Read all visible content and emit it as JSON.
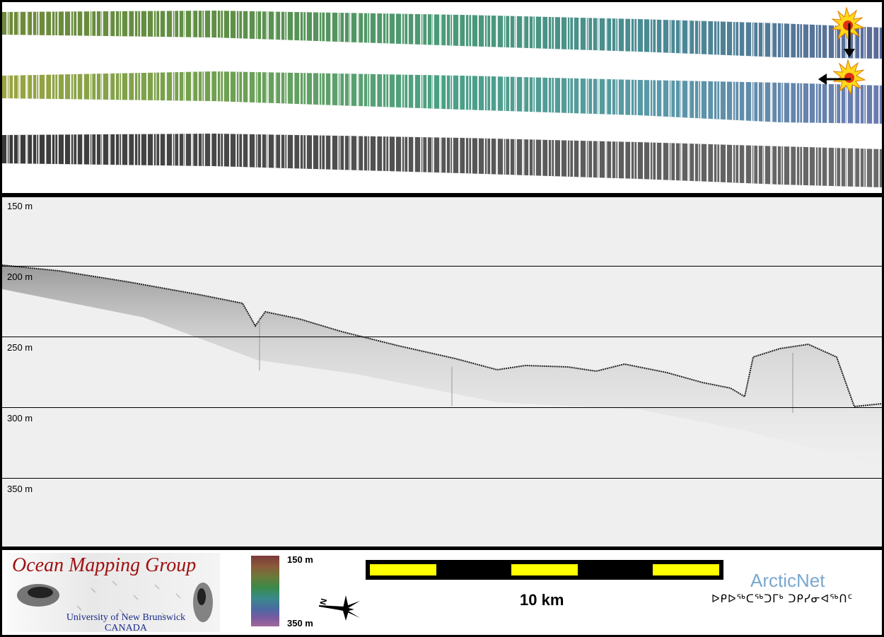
{
  "profile": {
    "depth_labels": [
      "150 m",
      "200 m",
      "250 m",
      "300 m",
      "350 m"
    ]
  },
  "footer": {
    "logo_title": "Ocean Mapping Group",
    "logo_university": "University of New Brunswick",
    "logo_country": "CANADA",
    "colorbar_top": "150 m",
    "colorbar_bottom": "350 m",
    "north_label": "N",
    "scale_label": "10 km",
    "partner_name": "ArcticNet",
    "partner_inuktitut": "ᐅᑭᐅᖅᑕᖅᑐᒥᒃ ᑐᑭᓯᓂᐊᖅᑎᑦ"
  },
  "icons": {
    "sun_vertical": "sun-illumination-icon",
    "sun_horizontal": "sun-illumination-icon",
    "north_arrow": "compass-star-icon"
  },
  "colors": {
    "scalebar_yellow": "#ffff00",
    "logo_red": "#a01010",
    "logo_blue": "#1a2a8a",
    "arcticnet_blue": "#7aa7cf",
    "profile_bg": "#efefef"
  }
}
